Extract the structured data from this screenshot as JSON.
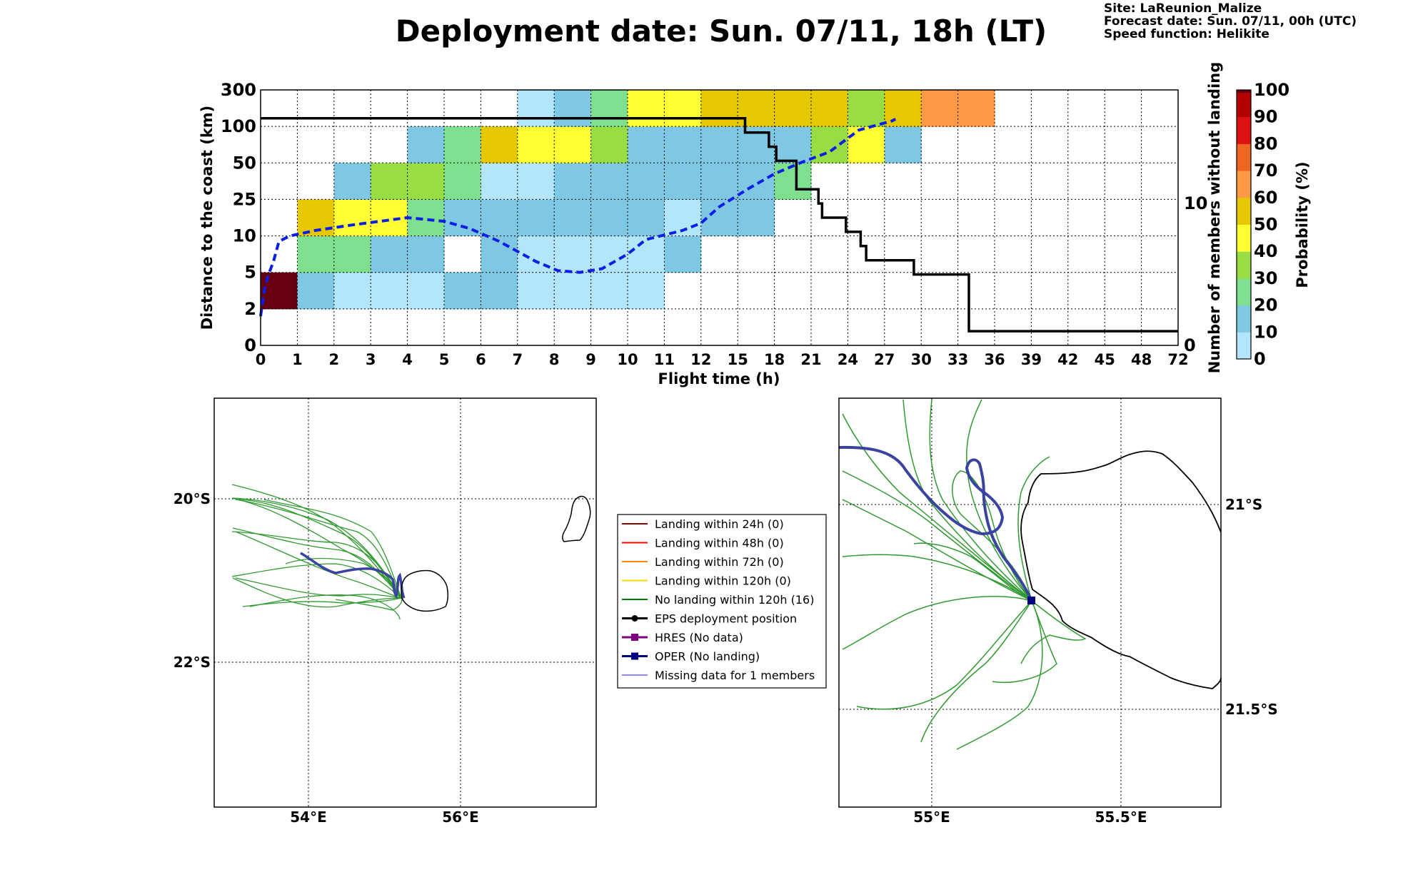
{
  "header": {
    "title": "Deployment date: Sun. 07/11, 18h (LT)",
    "site": "Site: LaReunion_Malize",
    "forecast_date": "Forecast date: Sun. 07/11, 00h (UTC)",
    "speed_function": "Speed function: Helikite"
  },
  "chart_data": [
    {
      "type": "heatmap",
      "xlabel": "Flight time (h)",
      "ylabel": "Distance to the coast (km)",
      "y2label": "Number of members without landing",
      "colorbar_label": "Probability (%)",
      "x_ticks": [
        "0",
        "1",
        "2",
        "3",
        "4",
        "5",
        "6",
        "7",
        "8",
        "9",
        "10",
        "11",
        "12",
        "15",
        "18",
        "21",
        "24",
        "27",
        "30",
        "33",
        "36",
        "39",
        "42",
        "45",
        "48",
        "72"
      ],
      "y_ticks": [
        "0",
        "2",
        "5",
        "10",
        "25",
        "50",
        "100",
        "300"
      ],
      "y2_ticks": [
        "0",
        "10"
      ],
      "y2lim": [
        0,
        18
      ],
      "grid": true,
      "colorbar": {
        "ticks": [
          "0",
          "10",
          "20",
          "30",
          "40",
          "50",
          "60",
          "70",
          "80",
          "90",
          "100"
        ],
        "colors": [
          "#b3e5fc",
          "#7ec8e3",
          "#7ee08e",
          "#99dd44",
          "#ffff33",
          "#e6c800",
          "#ff9944",
          "#ee6622",
          "#dd1111",
          "#b30000",
          "#660011"
        ]
      },
      "probability_cells": [
        [
          0,
          1,
          100
        ],
        [
          1,
          1,
          10
        ],
        [
          2,
          1,
          0
        ],
        [
          3,
          1,
          0
        ],
        [
          4,
          1,
          0
        ],
        [
          5,
          1,
          10
        ],
        [
          6,
          1,
          10
        ],
        [
          7,
          1,
          0
        ],
        [
          8,
          1,
          0
        ],
        [
          9,
          1,
          0
        ],
        [
          10,
          1,
          0
        ],
        [
          1,
          2,
          20
        ],
        [
          2,
          2,
          20
        ],
        [
          3,
          2,
          10
        ],
        [
          4,
          2,
          10
        ],
        [
          6,
          2,
          10
        ],
        [
          7,
          2,
          0
        ],
        [
          8,
          2,
          0
        ],
        [
          9,
          2,
          0
        ],
        [
          10,
          2,
          0
        ],
        [
          11,
          2,
          10
        ],
        [
          1,
          3,
          50
        ],
        [
          2,
          3,
          40
        ],
        [
          3,
          3,
          40
        ],
        [
          4,
          3,
          20
        ],
        [
          5,
          3,
          10
        ],
        [
          6,
          3,
          10
        ],
        [
          7,
          3,
          10
        ],
        [
          8,
          3,
          10
        ],
        [
          9,
          3,
          10
        ],
        [
          10,
          3,
          10
        ],
        [
          11,
          3,
          0
        ],
        [
          12,
          3,
          10
        ],
        [
          13,
          3,
          10
        ],
        [
          2,
          4,
          10
        ],
        [
          3,
          4,
          30
        ],
        [
          4,
          4,
          30
        ],
        [
          5,
          4,
          20
        ],
        [
          6,
          4,
          0
        ],
        [
          7,
          4,
          0
        ],
        [
          8,
          4,
          10
        ],
        [
          9,
          4,
          10
        ],
        [
          10,
          4,
          10
        ],
        [
          11,
          4,
          10
        ],
        [
          12,
          4,
          10
        ],
        [
          13,
          4,
          10
        ],
        [
          14,
          4,
          20
        ],
        [
          4,
          5,
          10
        ],
        [
          5,
          5,
          20
        ],
        [
          6,
          5,
          50
        ],
        [
          7,
          5,
          40
        ],
        [
          8,
          5,
          40
        ],
        [
          9,
          5,
          30
        ],
        [
          10,
          5,
          10
        ],
        [
          11,
          5,
          10
        ],
        [
          12,
          5,
          10
        ],
        [
          13,
          5,
          10
        ],
        [
          14,
          5,
          10
        ],
        [
          15,
          5,
          30
        ],
        [
          16,
          5,
          40
        ],
        [
          17,
          5,
          10
        ],
        [
          7,
          6,
          0
        ],
        [
          8,
          6,
          10
        ],
        [
          9,
          6,
          20
        ],
        [
          10,
          6,
          40
        ],
        [
          11,
          6,
          40
        ],
        [
          12,
          6,
          50
        ],
        [
          13,
          6,
          50
        ],
        [
          14,
          6,
          50
        ],
        [
          15,
          6,
          50
        ],
        [
          16,
          6,
          30
        ],
        [
          17,
          6,
          50
        ],
        [
          18,
          6,
          60
        ],
        [
          19,
          6,
          60
        ]
      ],
      "members_without_landing": [
        [
          0,
          16
        ],
        [
          13.2,
          16
        ],
        [
          13.2,
          15
        ],
        [
          13.85,
          15
        ],
        [
          13.85,
          14
        ],
        [
          14.05,
          14
        ],
        [
          14.05,
          13
        ],
        [
          14.6,
          13
        ],
        [
          14.6,
          11
        ],
        [
          15.2,
          11
        ],
        [
          15.2,
          10
        ],
        [
          15.3,
          10
        ],
        [
          15.3,
          9
        ],
        [
          15.95,
          9
        ],
        [
          15.95,
          8
        ],
        [
          16.35,
          8
        ],
        [
          16.35,
          7
        ],
        [
          16.5,
          7
        ],
        [
          16.5,
          6
        ],
        [
          17.8,
          6
        ],
        [
          17.8,
          5
        ],
        [
          19.3,
          5
        ],
        [
          19.3,
          1
        ],
        [
          25,
          1
        ]
      ],
      "mean_distance_curve": [
        [
          0,
          0.8
        ],
        [
          0.1,
          1.5
        ],
        [
          0.2,
          1.9
        ],
        [
          0.35,
          2.3
        ],
        [
          0.5,
          2.85
        ],
        [
          0.8,
          3.0
        ],
        [
          1.5,
          3.15
        ],
        [
          2.5,
          3.3
        ],
        [
          4,
          3.5
        ],
        [
          5,
          3.4
        ],
        [
          5.7,
          3.2
        ],
        [
          6.5,
          2.85
        ],
        [
          7.5,
          2.3
        ],
        [
          8.1,
          2.05
        ],
        [
          8.7,
          2.0
        ],
        [
          9.3,
          2.1
        ],
        [
          10,
          2.5
        ],
        [
          10.5,
          2.9
        ],
        [
          11.5,
          3.15
        ],
        [
          12,
          3.35
        ],
        [
          12.5,
          3.8
        ],
        [
          13.3,
          4.3
        ],
        [
          14,
          4.7
        ],
        [
          14.7,
          5.0
        ],
        [
          15.5,
          5.3
        ],
        [
          16.3,
          5.9
        ],
        [
          17.2,
          6.15
        ],
        [
          17.3,
          6.2
        ]
      ]
    },
    {
      "type": "map",
      "lat_ticks": [
        "20°S",
        "22°S"
      ],
      "lon_ticks": [
        "54°E",
        "56°E"
      ],
      "grid": true
    },
    {
      "type": "map",
      "lat_ticks": [
        "21°S",
        "21.5°S"
      ],
      "lon_ticks": [
        "55°E",
        "55.5°E"
      ],
      "grid": true
    }
  ],
  "legend": {
    "items": [
      {
        "label": "Landing within 24h (0)",
        "color": "#8b0000",
        "marker": "none"
      },
      {
        "label": "Landing within 48h (0)",
        "color": "#ff0000",
        "marker": "none"
      },
      {
        "label": "Landing within 72h (0)",
        "color": "#ff8c00",
        "marker": "none"
      },
      {
        "label": "Landing within 120h (0)",
        "color": "#ffd700",
        "marker": "none"
      },
      {
        "label": "No landing within 120h (16)",
        "color": "#008000",
        "marker": "none"
      },
      {
        "label": "EPS deployment position",
        "color": "#000000",
        "marker": "circle"
      },
      {
        "label": "HRES (No data)",
        "color": "#800080",
        "marker": "square"
      },
      {
        "label": "OPER (No landing)",
        "color": "#000080",
        "marker": "square"
      },
      {
        "label": "Missing data for 1 members",
        "color": "#4444ff",
        "marker": "thin"
      }
    ]
  },
  "colors": {
    "member_track": "#2f9a2f",
    "oper_track": "#3a44a0",
    "oper_marker": "#000080",
    "mean_curve": "#0a1ee6",
    "step_line": "#000000",
    "coast": "#000000"
  }
}
